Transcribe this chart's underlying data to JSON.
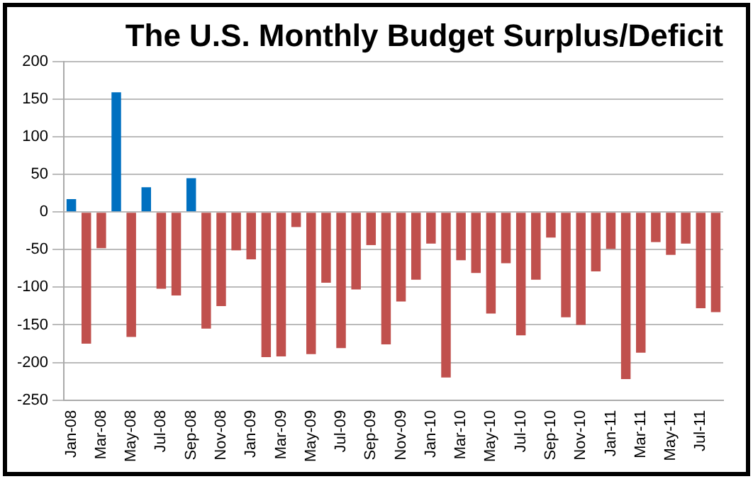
{
  "chart_data": {
    "type": "bar",
    "title": "The U.S. Monthly Budget Surplus/Deficit",
    "categories": [
      "Jan-08",
      null,
      "Mar-08",
      null,
      "May-08",
      null,
      "Jul-08",
      null,
      "Sep-08",
      null,
      "Nov-08",
      null,
      "Jan-09",
      null,
      "Mar-09",
      null,
      "May-09",
      null,
      "Jul-09",
      null,
      "Sep-09",
      null,
      "Nov-09",
      null,
      "Jan-10",
      null,
      "Mar-10",
      null,
      "May-10",
      null,
      "Jul-10",
      null,
      "Sep-10",
      null,
      "Nov-10",
      null,
      "Jan-11",
      null,
      "Mar-11",
      null,
      "May-11",
      null,
      "Jul-11",
      null
    ],
    "values": [
      17,
      -175,
      -48,
      159,
      -166,
      33,
      -102,
      -111,
      45,
      -155,
      -125,
      -51,
      -63,
      -193,
      -192,
      -20,
      -189,
      -94,
      -181,
      -103,
      -44,
      -176,
      -119,
      -90,
      -42,
      -220,
      -64,
      -81,
      -135,
      -68,
      -164,
      -90,
      -34,
      -140,
      -150,
      -79,
      -49,
      -222,
      -187,
      -40,
      -57,
      -42,
      -128,
      -133
    ],
    "colors": [
      "#0070c0",
      "#c0504d",
      "#c0504d",
      "#0070c0",
      "#c0504d",
      "#0070c0",
      "#c0504d",
      "#c0504d",
      "#0070c0",
      "#c0504d",
      "#c0504d",
      "#c0504d",
      "#c0504d",
      "#c0504d",
      "#c0504d",
      "#c0504d",
      "#c0504d",
      "#c0504d",
      "#c0504d",
      "#c0504d",
      "#c0504d",
      "#c0504d",
      "#c0504d",
      "#c0504d",
      "#c0504d",
      "#c0504d",
      "#c0504d",
      "#c0504d",
      "#c0504d",
      "#c0504d",
      "#c0504d",
      "#c0504d",
      "#c0504d",
      "#c0504d",
      "#c0504d",
      "#c0504d",
      "#c0504d",
      "#c0504d",
      "#c0504d",
      "#c0504d",
      "#c0504d",
      "#c0504d",
      "#c0504d",
      "#c0504d"
    ],
    "ylim": [
      -250,
      200
    ],
    "yticks": [
      -250,
      -200,
      -150,
      -100,
      -50,
      0,
      50,
      100,
      150,
      200
    ],
    "grid": "y"
  }
}
